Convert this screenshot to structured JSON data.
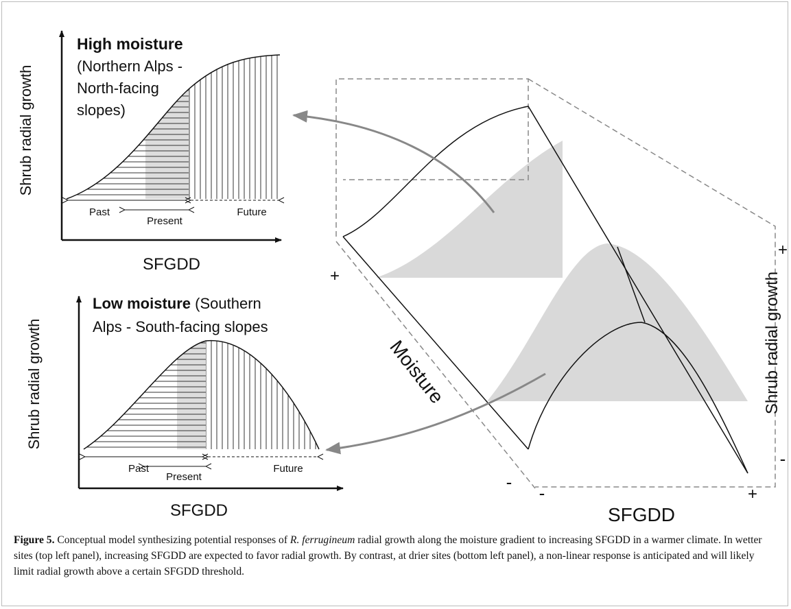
{
  "left_panels": [
    {
      "y_label": "Shrub radial growth",
      "title": "High moisture",
      "subtitle_lines": [
        "(Northern Alps -",
        "North-facing",
        "slopes)"
      ],
      "x_label": "SFGDD",
      "periods": [
        "Past",
        "Present",
        "Future"
      ]
    },
    {
      "y_label": "Shrub radial growth",
      "title": "Low moisture",
      "subtitle_lines": [
        "(Southern",
        "Alps - South-facing slopes"
      ],
      "x_label": "SFGDD",
      "periods": [
        "Past",
        "Present",
        "Future"
      ]
    }
  ],
  "gradient_diagram": {
    "moisture_plus": "+",
    "moisture_label": "Moisture",
    "moisture_minus": "-",
    "sfgdd_minus": "-",
    "sfgdd_label": "SFGDD",
    "sfgdd_plus": "+",
    "growth_label": "Shrub radial growth",
    "growth_plus": "+",
    "growth_minus": "-"
  },
  "caption": {
    "label": "Figure 5.",
    "text_before": "Conceptual model synthesizing potential responses of ",
    "species": "R. ferrugineum",
    "text_after": " radial growth along the moisture gradient to increasing SFGDD in a warmer climate. In wetter sites (top left panel), increasing SFGDD are expected to favor radial growth. By contrast, at drier sites (bottom left panel), a non-linear response is anticipated and will likely limit radial growth above a certain SFGDD threshold."
  }
}
